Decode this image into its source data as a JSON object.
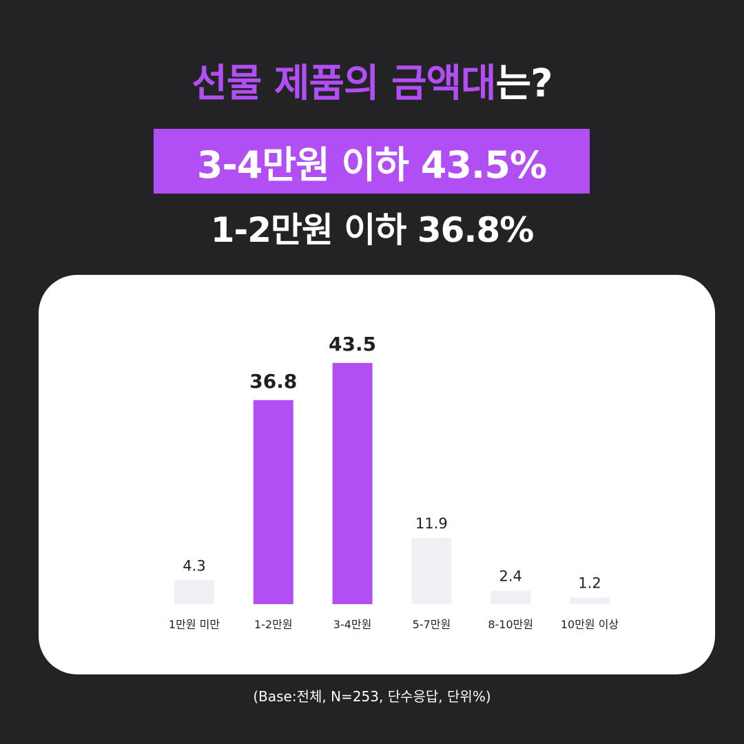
{
  "headline": {
    "highlight": "선물 제품의 금액대",
    "rest": "는?"
  },
  "hero": "3-4만원 이하 43.5%",
  "subhero": "1-2만원 이하 36.8%",
  "footnote": "(Base:전체, N=253, 단수응답, 단위%)",
  "colors": {
    "background": "#232225",
    "accent": "#B14FF5",
    "bar_muted": "#F0EFF5",
    "card": "#FFFFFF"
  },
  "chart_data": {
    "type": "bar",
    "title": "",
    "xlabel": "",
    "ylabel": "",
    "ylim": [
      0,
      50
    ],
    "grid": false,
    "categories": [
      "1만원 미만",
      "1-2만원",
      "3-4만원",
      "5-7만원",
      "8-10만원",
      "10만원 이상"
    ],
    "values": [
      4.3,
      36.8,
      43.5,
      11.9,
      2.4,
      1.2
    ],
    "value_labels": [
      "4.3",
      "36.8",
      "43.5",
      "11.9",
      "2.4",
      "1.2"
    ],
    "highlighted": [
      false,
      true,
      true,
      false,
      false,
      false
    ]
  }
}
